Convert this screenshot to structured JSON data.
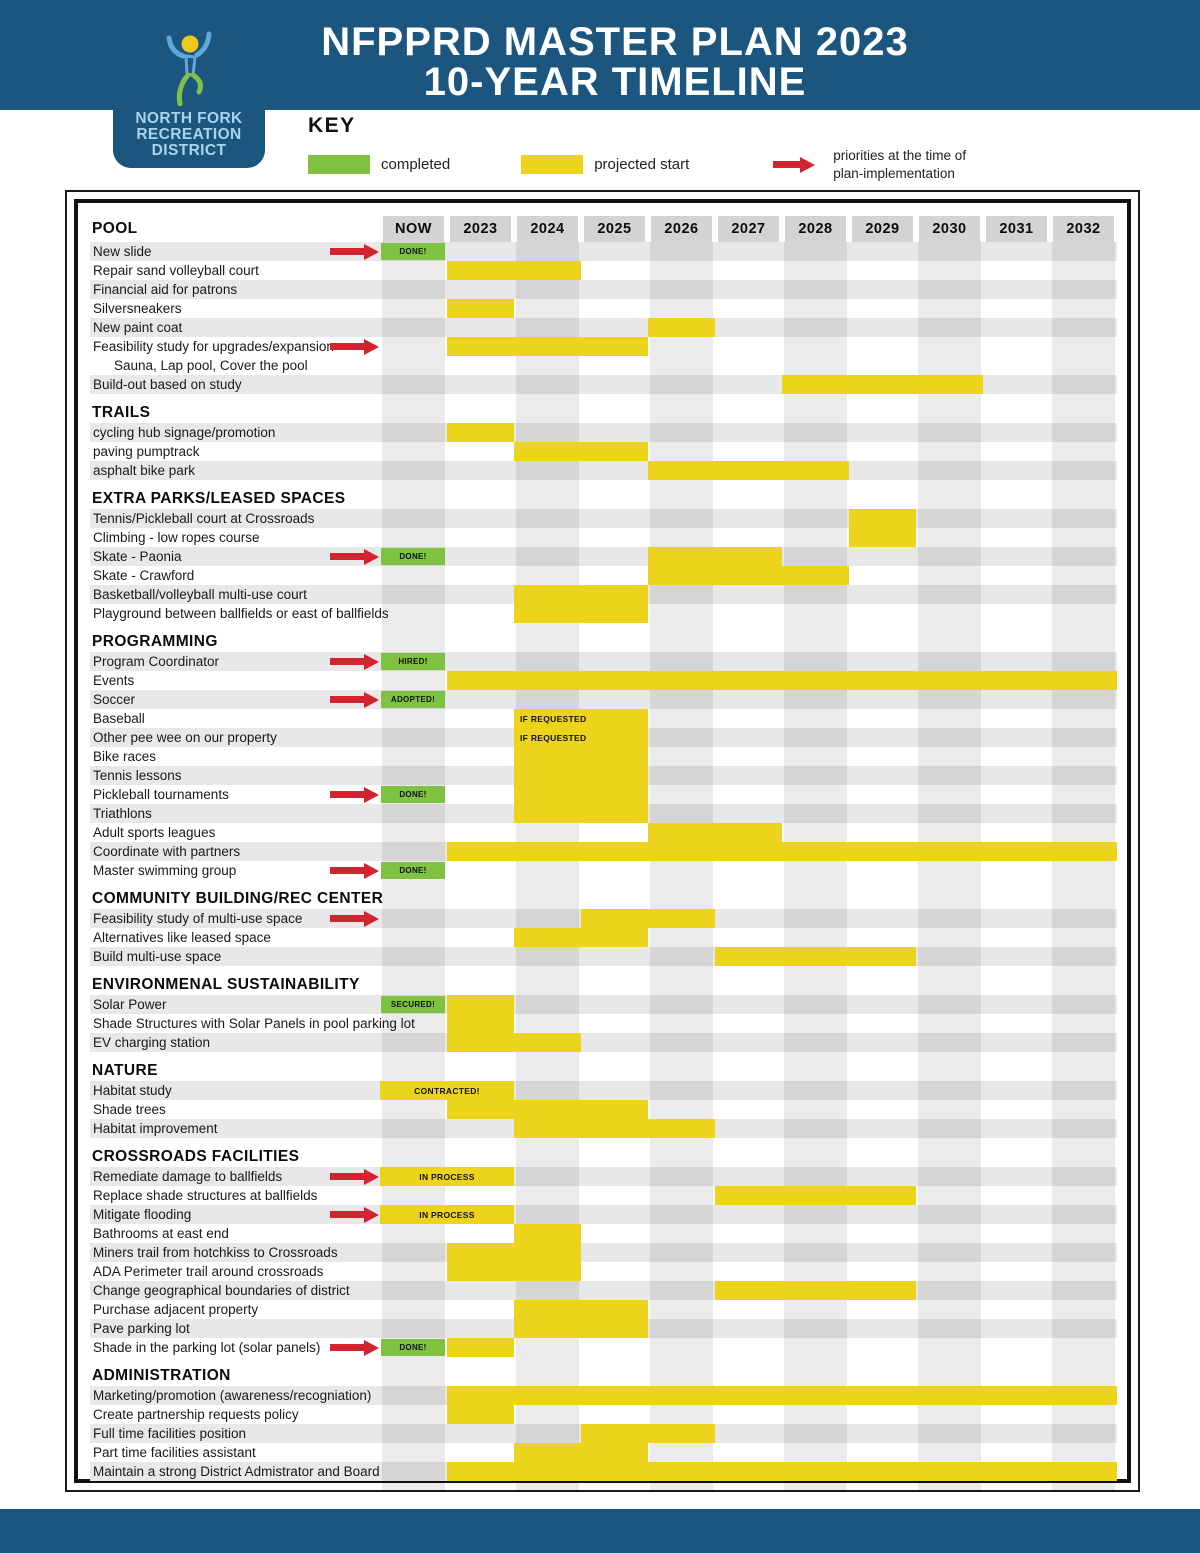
{
  "header": {
    "title_line1": "NFPPRD MASTER PLAN 2023",
    "title_line2": "10-YEAR TIMELINE",
    "logo_lines": [
      "NORTH FORK",
      "RECREATION",
      "DISTRICT"
    ]
  },
  "key": {
    "heading": "KEY",
    "completed_label": "completed",
    "projected_label": "projected start",
    "arrow_label": "priorities at the time of plan-implementation"
  },
  "colors": {
    "band_blue": "#1C567F",
    "logo_text_blue": "#A6D4EE",
    "completed_green": "#7FC241",
    "projected_yellow": "#EDD41C",
    "priority_red": "#D2232E",
    "row_stripe_gray": "#E8E8E8",
    "header_cell_gray": "#D3D3D3"
  },
  "chart_data": {
    "type": "gantt",
    "title": "NFPPRD MASTER PLAN 2023 10-YEAR TIMELINE",
    "columns": [
      "NOW",
      "2023",
      "2024",
      "2025",
      "2026",
      "2027",
      "2028",
      "2029",
      "2030",
      "2031",
      "2032"
    ],
    "legend": [
      {
        "label": "completed",
        "color": "#7FC241"
      },
      {
        "label": "projected start",
        "color": "#EDD41C"
      },
      {
        "label": "priorities at the time of plan-implementation",
        "symbol": "red-arrow"
      }
    ],
    "sections": [
      {
        "title": "POOL",
        "rows": [
          {
            "label": "New slide",
            "arrow": true,
            "badge": "DONE!"
          },
          {
            "label": "Repair sand volleyball court",
            "bar": {
              "start": 1,
              "span": 2
            }
          },
          {
            "label": "Financial aid for patrons"
          },
          {
            "label": "Silversneakers",
            "bar": {
              "start": 1,
              "span": 1
            }
          },
          {
            "label": "New paint coat",
            "bar": {
              "start": 4,
              "span": 1
            }
          },
          {
            "label": "Feasibility study for upgrades/expansion",
            "arrow": true,
            "bar": {
              "start": 1,
              "span": 3
            }
          },
          {
            "label": "Sauna, Lap pool, Cover the pool",
            "sub": true
          },
          {
            "label": "Build-out based on study",
            "bar": {
              "start": 6,
              "span": 3
            }
          }
        ]
      },
      {
        "title": "TRAILS",
        "rows": [
          {
            "label": "cycling hub signage/promotion",
            "bar": {
              "start": 1,
              "span": 1
            }
          },
          {
            "label": "paving pumptrack",
            "bar": {
              "start": 2,
              "span": 2
            }
          },
          {
            "label": "asphalt bike park",
            "bar": {
              "start": 4,
              "span": 3
            }
          }
        ]
      },
      {
        "title": "EXTRA PARKS/LEASED SPACES",
        "rows": [
          {
            "label": "Tennis/Pickleball court at Crossroads",
            "bar": {
              "start": 7,
              "span": 1
            }
          },
          {
            "label": "Climbing - low ropes course",
            "bar": {
              "start": 7,
              "span": 1
            }
          },
          {
            "label": "Skate - Paonia",
            "arrow": true,
            "badge": "DONE!",
            "bar": {
              "start": 4,
              "span": 2
            }
          },
          {
            "label": "Skate - Crawford",
            "bar": {
              "start": 4,
              "span": 3
            }
          },
          {
            "label": "Basketball/volleyball multi-use court",
            "bar": {
              "start": 2,
              "span": 2
            }
          },
          {
            "label": "Playground between ballfields or east of ballfields",
            "bar": {
              "start": 2,
              "span": 2
            }
          }
        ]
      },
      {
        "title": "PROGRAMMING",
        "rows": [
          {
            "label": "Program Coordinator",
            "arrow": true,
            "badge": "HIRED!"
          },
          {
            "label": "Events",
            "bar": {
              "start": 1,
              "span": 10
            }
          },
          {
            "label": "Soccer",
            "arrow": true,
            "badge": "ADOPTED!"
          },
          {
            "label": "Baseball",
            "bar": {
              "start": 2,
              "span": 2,
              "label": "IF REQUESTED",
              "align": "left"
            }
          },
          {
            "label": "Other pee wee on our property",
            "bar": {
              "start": 2,
              "span": 2,
              "label": "IF REQUESTED",
              "align": "left"
            }
          },
          {
            "label": "Bike races",
            "bar": {
              "start": 2,
              "span": 2
            }
          },
          {
            "label": "Tennis lessons",
            "bar": {
              "start": 2,
              "span": 2
            }
          },
          {
            "label": "Pickleball tournaments",
            "arrow": true,
            "badge": "DONE!",
            "bar": {
              "start": 2,
              "span": 2
            }
          },
          {
            "label": "Triathlons",
            "bar": {
              "start": 2,
              "span": 2
            }
          },
          {
            "label": "Adult sports leagues",
            "bar": {
              "start": 4,
              "span": 2
            }
          },
          {
            "label": "Coordinate with partners",
            "bar": {
              "start": 1,
              "span": 10
            }
          },
          {
            "label": "Master swimming group",
            "arrow": true,
            "badge": "DONE!"
          }
        ]
      },
      {
        "title": "COMMUNITY BUILDING/REC CENTER",
        "rows": [
          {
            "label": "Feasibility study of multi-use space",
            "arrow": true,
            "bar": {
              "start": 3,
              "span": 2
            }
          },
          {
            "label": "Alternatives like leased space",
            "bar": {
              "start": 2,
              "span": 2
            }
          },
          {
            "label": "Build multi-use space",
            "bar": {
              "start": 5,
              "span": 3
            }
          }
        ]
      },
      {
        "title": "ENVIRONMENAL SUSTAINABILITY",
        "rows": [
          {
            "label": "Solar Power",
            "badge": "SECURED!",
            "bar": {
              "start": 1,
              "span": 1
            }
          },
          {
            "label": "Shade Structures with Solar Panels in pool parking lot",
            "bar": {
              "start": 1,
              "span": 1
            }
          },
          {
            "label": "EV charging station",
            "bar": {
              "start": 1,
              "span": 2
            }
          }
        ]
      },
      {
        "title": "NATURE",
        "rows": [
          {
            "label": "Habitat study",
            "bar": {
              "start": 0,
              "span": 2,
              "label": "CONTRACTED!"
            }
          },
          {
            "label": "Shade trees",
            "bar": {
              "start": 1,
              "span": 3
            }
          },
          {
            "label": "Habitat improvement",
            "bar": {
              "start": 2,
              "span": 3
            }
          }
        ]
      },
      {
        "title": "CROSSROADS FACILITIES",
        "rows": [
          {
            "label": "Remediate damage to ballfields",
            "arrow": true,
            "bar": {
              "start": 0,
              "span": 2,
              "label": "IN PROCESS"
            }
          },
          {
            "label": "Replace shade structures at ballfields",
            "bar": {
              "start": 5,
              "span": 3
            }
          },
          {
            "label": "Mitigate flooding",
            "arrow": true,
            "bar": {
              "start": 0,
              "span": 2,
              "label": "IN PROCESS"
            }
          },
          {
            "label": "Bathrooms at east end",
            "bar": {
              "start": 2,
              "span": 1
            }
          },
          {
            "label": "Miners trail from hotchkiss to Crossroads",
            "bar": {
              "start": 1,
              "span": 2
            }
          },
          {
            "label": "ADA Perimeter trail around crossroads",
            "bar": {
              "start": 1,
              "span": 2
            }
          },
          {
            "label": "Change geographical boundaries of district",
            "bar": {
              "start": 5,
              "span": 3
            }
          },
          {
            "label": "Purchase adjacent property",
            "bar": {
              "start": 2,
              "span": 2
            }
          },
          {
            "label": "Pave parking lot",
            "bar": {
              "start": 2,
              "span": 2
            }
          },
          {
            "label": "Shade in the parking lot (solar panels)",
            "arrow": true,
            "badge": "DONE!",
            "bar": {
              "start": 1,
              "span": 1
            }
          }
        ]
      },
      {
        "title": "ADMINISTRATION",
        "rows": [
          {
            "label": "Marketing/promotion (awareness/recogniation)",
            "bar": {
              "start": 1,
              "span": 10
            }
          },
          {
            "label": "Create partnership requests policy",
            "bar": {
              "start": 1,
              "span": 1
            }
          },
          {
            "label": "Full time facilities position",
            "bar": {
              "start": 3,
              "span": 2
            }
          },
          {
            "label": "Part time facilities assistant",
            "bar": {
              "start": 2,
              "span": 2
            }
          },
          {
            "label": "Maintain a strong District Admistrator and Board",
            "bar": {
              "start": 1,
              "span": 10
            }
          }
        ]
      }
    ]
  }
}
